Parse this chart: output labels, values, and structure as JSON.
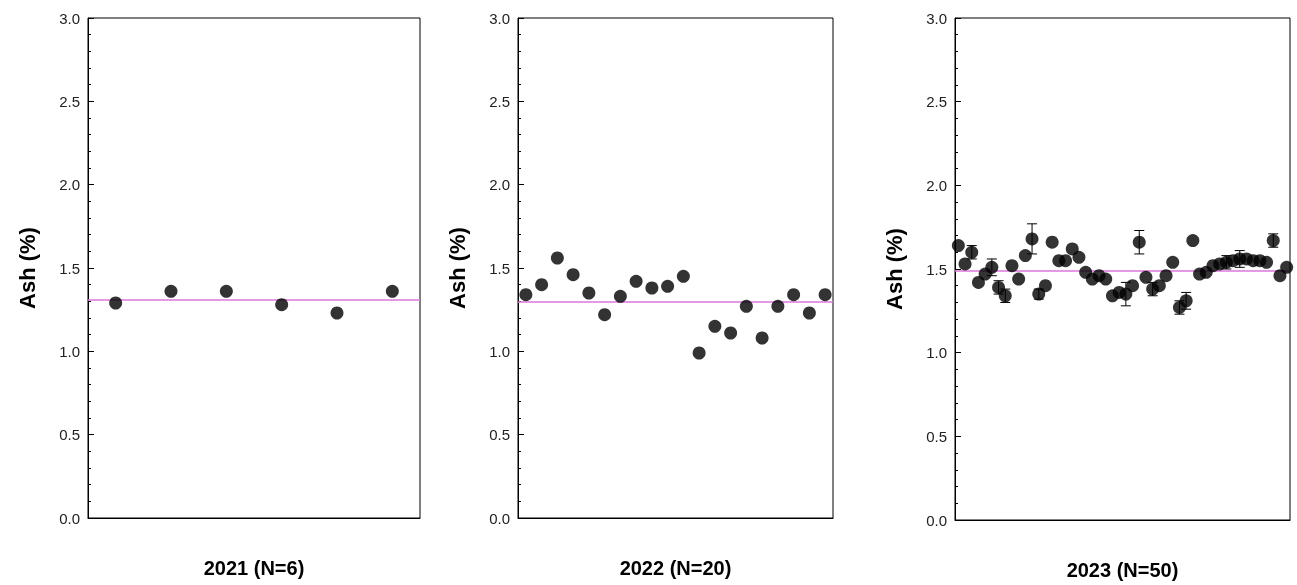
{
  "chart_data": [
    {
      "type": "scatter",
      "xlabel": "2021 (N=6)",
      "ylabel": "Ash (%)",
      "categories": [
        null,
        null,
        null,
        null,
        null,
        null
      ],
      "series": [
        {
          "color": "#000000",
          "values": [
            1.29,
            1.36,
            1.36,
            1.28,
            1.23,
            1.36
          ]
        }
      ],
      "ylim": [
        0,
        3
      ],
      "yticks": [
        {
          "value": 0,
          "label": "0.0"
        },
        {
          "value": 0.5,
          "label": "0.5"
        },
        {
          "value": 1,
          "label": "1.0"
        },
        {
          "value": 1.5,
          "label": "1.5"
        },
        {
          "value": 2,
          "label": "2.0"
        },
        {
          "value": 2.5,
          "label": "2.5"
        },
        {
          "value": 3,
          "label": "3.0"
        }
      ],
      "ref_lines": [
        {
          "axis": "y",
          "value": 1.31,
          "color": "#dd77dd"
        }
      ],
      "marker": "circle"
    },
    {
      "type": "scatter",
      "xlabel": "2022 (N=20)",
      "ylabel": "Ash (%)",
      "categories": [
        null,
        null,
        null,
        null,
        null,
        null,
        null,
        null,
        null,
        null,
        null,
        null,
        null,
        null,
        null,
        null,
        null,
        null,
        null,
        null
      ],
      "series": [
        {
          "color": "#000000",
          "values": [
            1.34,
            1.4,
            1.56,
            1.46,
            1.35,
            1.22,
            1.33,
            1.42,
            1.38,
            1.39,
            1.45,
            0.99,
            1.15,
            1.11,
            1.27,
            1.08,
            1.27,
            1.34,
            1.23,
            1.34
          ]
        }
      ],
      "ylim": [
        0,
        3
      ],
      "yticks": [
        {
          "value": 0,
          "label": "0.0"
        },
        {
          "value": 0.5,
          "label": "0.5"
        },
        {
          "value": 1,
          "label": "1.0"
        },
        {
          "value": 1.5,
          "label": "1.5"
        },
        {
          "value": 2,
          "label": "2.0"
        },
        {
          "value": 2.5,
          "label": "2.5"
        },
        {
          "value": 3,
          "label": "3.0"
        }
      ],
      "ref_lines": [
        {
          "axis": "y",
          "value": 1.3,
          "color": "#dd77dd"
        }
      ],
      "marker": "circle"
    },
    {
      "type": "scatter",
      "xlabel": "2023 (N=50)",
      "ylabel": "Ash (%)",
      "categories": [
        null,
        null,
        null,
        null,
        null,
        null,
        null,
        null,
        null,
        null,
        null,
        null,
        null,
        null,
        null,
        null,
        null,
        null,
        null,
        null,
        null,
        null,
        null,
        null,
        null,
        null,
        null,
        null,
        null,
        null,
        null,
        null,
        null,
        null,
        null,
        null,
        null,
        null,
        null,
        null,
        null,
        null,
        null,
        null,
        null,
        null,
        null,
        null,
        null,
        null
      ],
      "series": [
        {
          "color": "#000000",
          "values": [
            1.64,
            1.53,
            1.6,
            1.42,
            1.47,
            1.51,
            1.39,
            1.34,
            1.52,
            1.44,
            1.58,
            1.68,
            1.35,
            1.4,
            1.66,
            1.55,
            1.55,
            1.62,
            1.57,
            1.48,
            1.44,
            1.46,
            1.44,
            1.34,
            1.36,
            1.35,
            1.4,
            1.66,
            1.45,
            1.38,
            1.4,
            1.46,
            1.54,
            1.27,
            1.31,
            1.67,
            1.47,
            1.48,
            1.52,
            1.53,
            1.54,
            1.55,
            1.56,
            1.56,
            1.55,
            1.55,
            1.54,
            1.67,
            1.46,
            1.51
          ],
          "errors": [
            null,
            null,
            0.04,
            null,
            null,
            0.05,
            0.04,
            0.04,
            null,
            null,
            null,
            0.09,
            0.03,
            null,
            null,
            null,
            null,
            null,
            null,
            null,
            null,
            null,
            null,
            null,
            null,
            0.07,
            null,
            0.07,
            null,
            0.04,
            null,
            null,
            null,
            0.04,
            0.05,
            null,
            null,
            null,
            null,
            null,
            0.04,
            null,
            0.05,
            null,
            null,
            null,
            null,
            0.04,
            null,
            null
          ]
        }
      ],
      "ylim": [
        0,
        3
      ],
      "yticks": [
        {
          "value": 0,
          "label": "0.0"
        },
        {
          "value": 0.5,
          "label": "0.5"
        },
        {
          "value": 1,
          "label": "1.0"
        },
        {
          "value": 1.5,
          "label": "1.5"
        },
        {
          "value": 2,
          "label": "2.0"
        },
        {
          "value": 2.5,
          "label": "2.5"
        },
        {
          "value": 3,
          "label": "3.0"
        }
      ],
      "ref_lines": [
        {
          "axis": "y",
          "value": 1.49,
          "color": "#dd77dd"
        }
      ],
      "marker": "circle"
    }
  ]
}
